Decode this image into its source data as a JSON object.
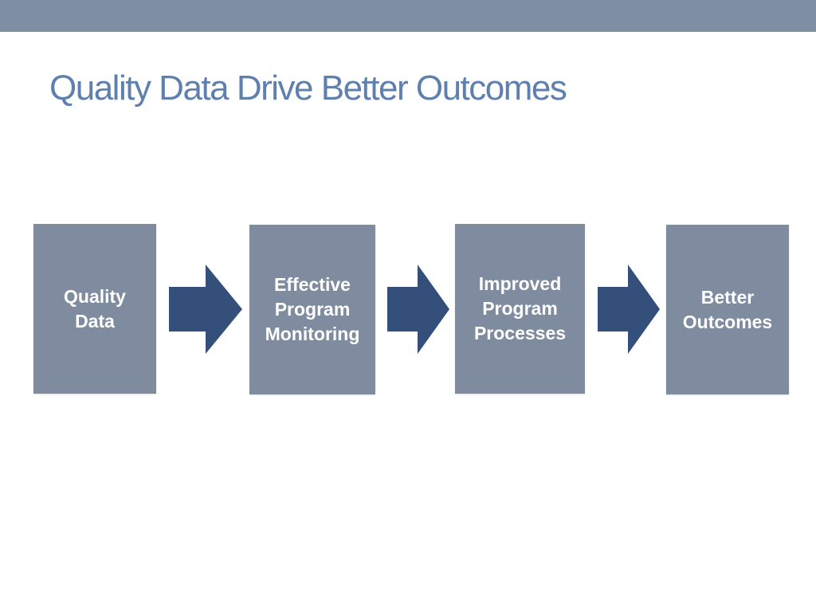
{
  "slide": {
    "title": "Quality Data Drive Better Outcomes"
  },
  "flow": {
    "steps": [
      {
        "label": "Quality\nData"
      },
      {
        "label": "Effective\nProgram\nMonitoring"
      },
      {
        "label": "Improved\nProgram\nProcesses"
      },
      {
        "label": "Better\nOutcomes"
      }
    ],
    "arrow_icon": "right-arrow-icon"
  },
  "colors": {
    "header_band": "#8090a4",
    "title": "#5f7fae",
    "box_fill": "#7f8c9f",
    "box_text": "#ffffff",
    "arrow_fill": "#34507a"
  }
}
